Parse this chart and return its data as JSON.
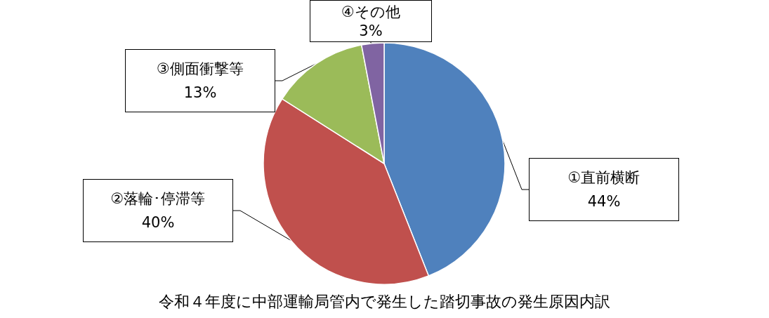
{
  "chart_data": {
    "type": "pie",
    "title": "令和４年度に中部運輸局管内で発生した踏切事故の発生原因内訳",
    "categories": [
      "①直前横断",
      "②落輪･停滞等",
      "③側面衝撃等",
      "④その他"
    ],
    "values": [
      44,
      40,
      13,
      3
    ],
    "value_labels": [
      "44%",
      "40%",
      "13%",
      "3%"
    ],
    "colors": [
      "#4f81bd",
      "#c0504d",
      "#9bbb59",
      "#8064a2"
    ]
  }
}
